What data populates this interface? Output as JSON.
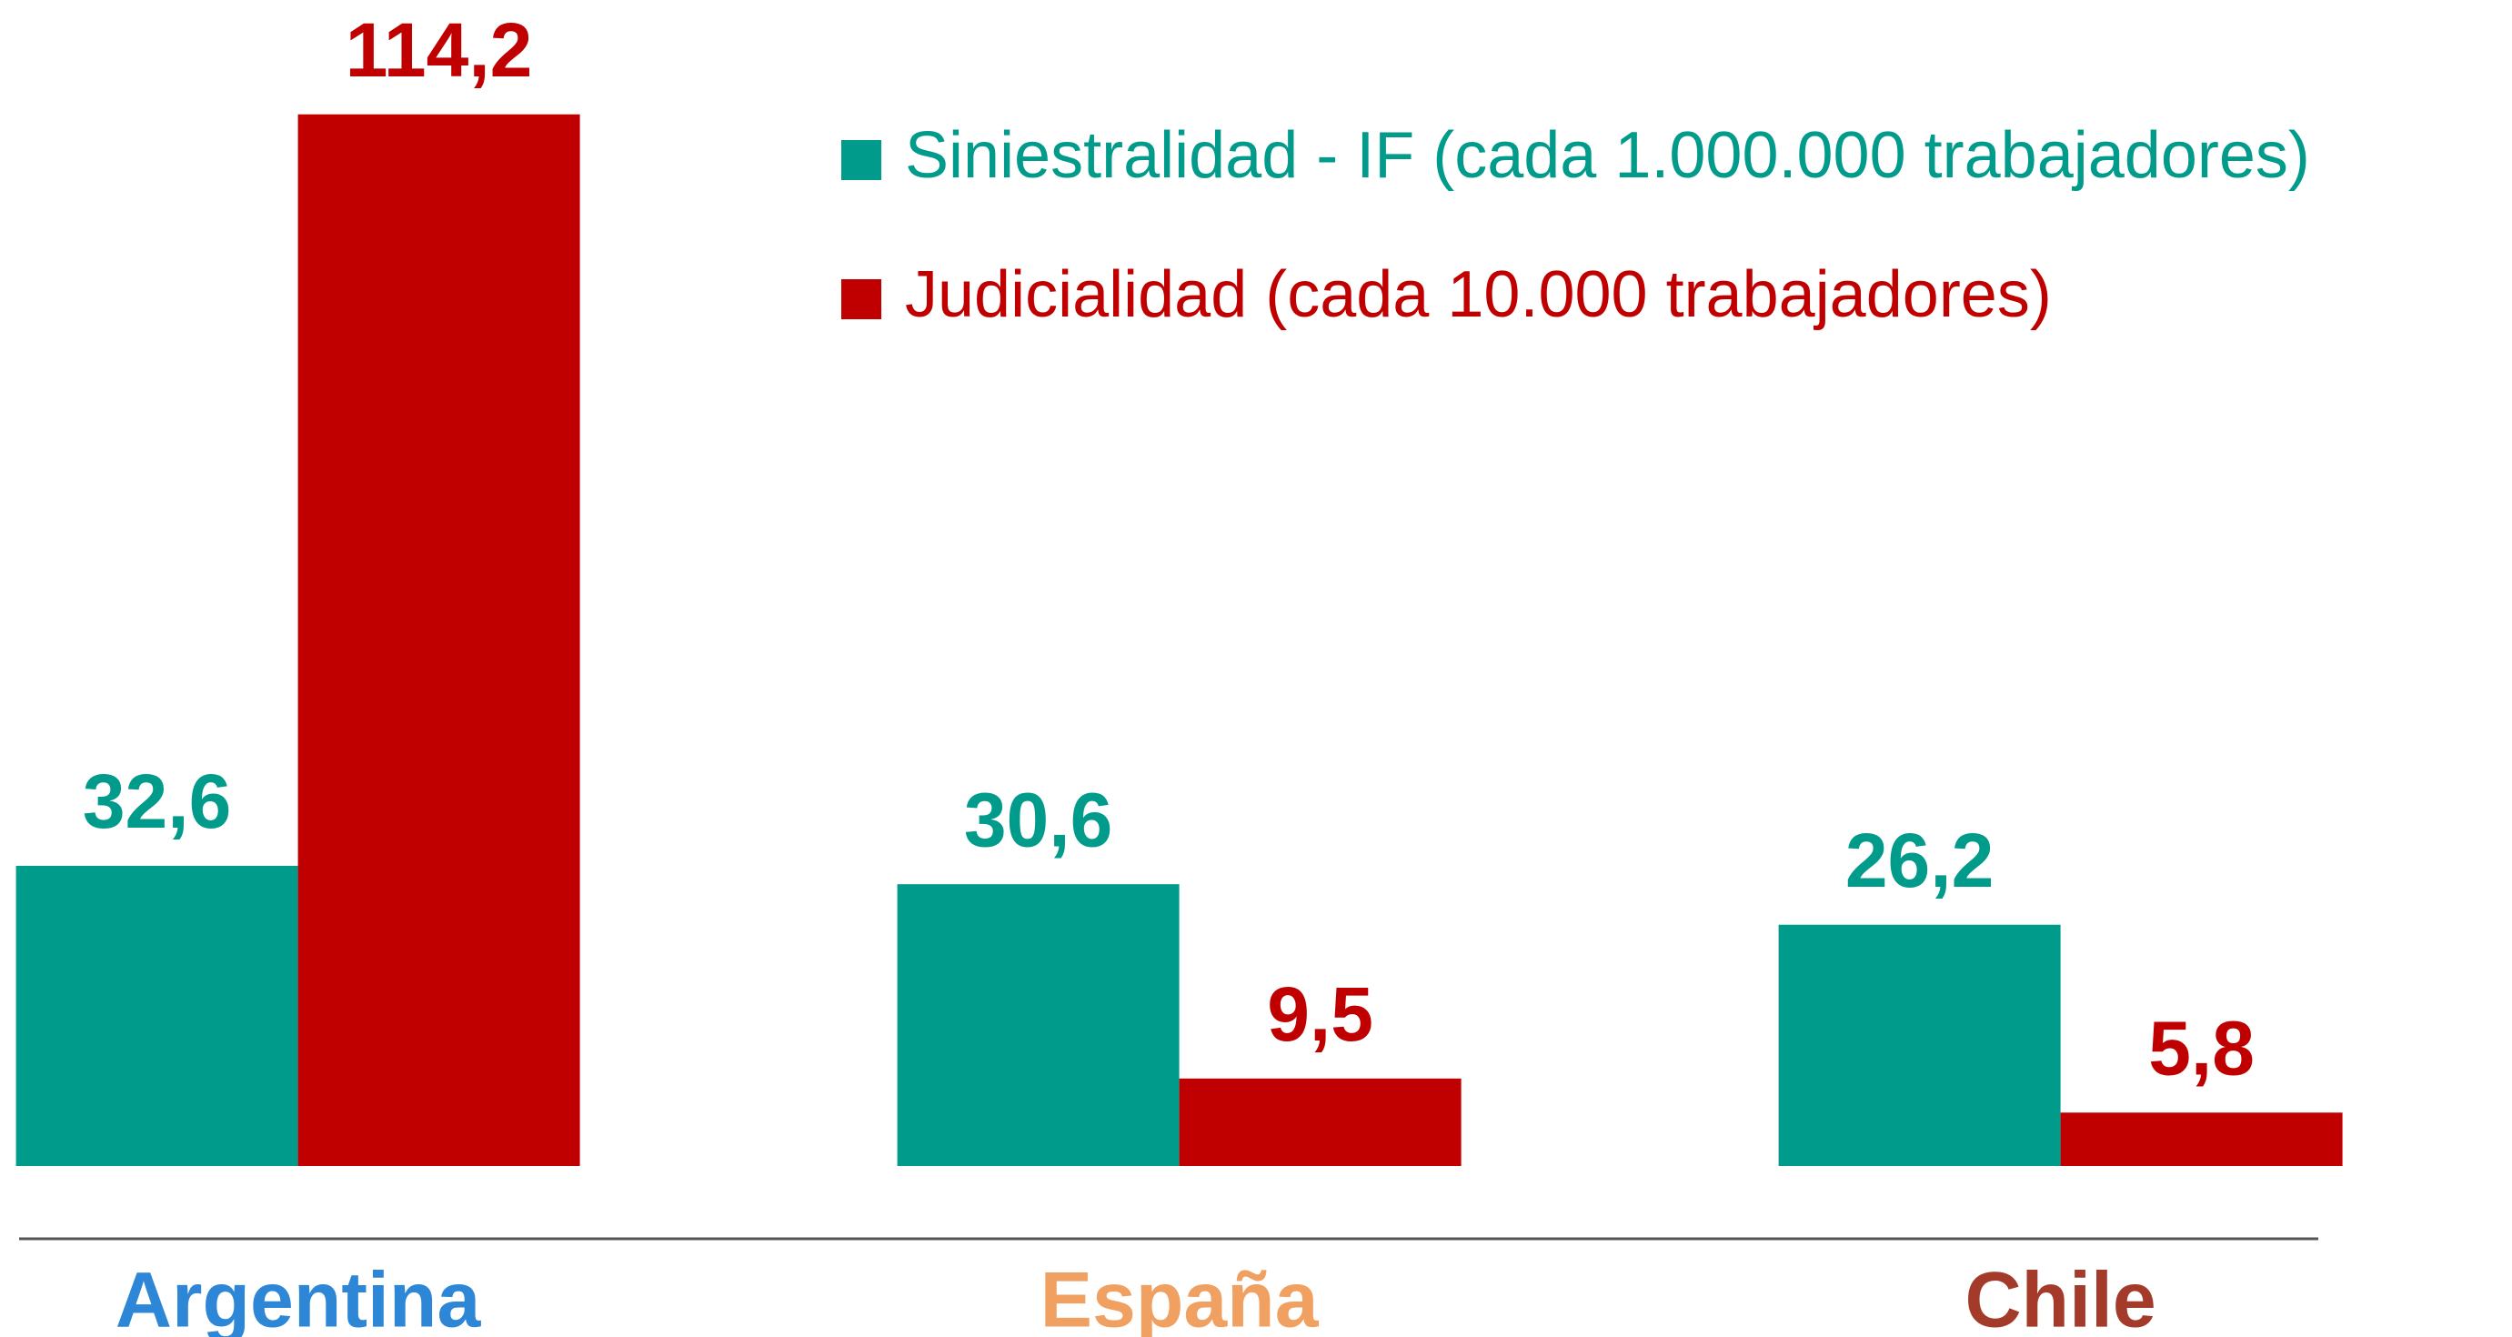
{
  "chart_data": {
    "type": "bar",
    "categories": [
      "Argentina",
      "España",
      "Chile"
    ],
    "category_colors": [
      "#2e86d6",
      "#f0a060",
      "#a33a2a"
    ],
    "series": [
      {
        "name": "Siniestralidad - IF (cada 1.000.000 trabajadores)",
        "color": "#009b8a",
        "values": [
          32.6,
          30.6,
          26.2
        ],
        "value_labels": [
          "32,6",
          "30,6",
          "26,2"
        ]
      },
      {
        "name": "Judicialidad (cada 10.000 trabajadores)",
        "color": "#c00000",
        "values": [
          114.2,
          9.5,
          5.8
        ],
        "value_labels": [
          "114,2",
          "9,5",
          "5,8"
        ]
      }
    ],
    "ylim": [
      0,
      120
    ],
    "legend": "top-right"
  }
}
